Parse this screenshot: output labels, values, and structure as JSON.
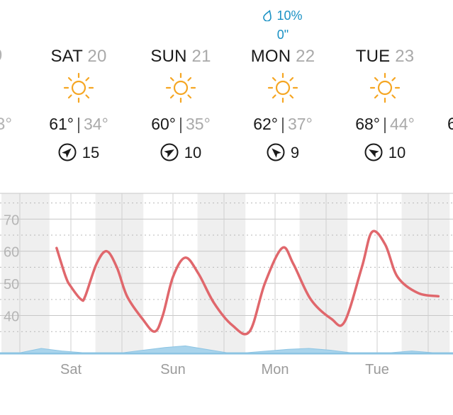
{
  "edges": {
    "left_header_glyph": "9",
    "left_temp_partial": "3°",
    "right_temp_partial": "6"
  },
  "days": [
    {
      "name": "SAT",
      "date": "20",
      "hi": "61°",
      "lo": "34°",
      "wind": "15",
      "icon": "sun-icon"
    },
    {
      "name": "SUN",
      "date": "21",
      "hi": "60°",
      "lo": "35°",
      "wind": "10",
      "icon": "sun-icon"
    },
    {
      "name": "MON",
      "date": "22",
      "hi": "62°",
      "lo": "37°",
      "wind": "9",
      "icon": "sun-icon",
      "precip_chance": "10%",
      "precip_amount": "0\""
    },
    {
      "name": "TUE",
      "date": "23",
      "hi": "68°",
      "lo": "44°",
      "wind": "10",
      "icon": "sun-icon"
    }
  ],
  "separator": "|",
  "colors": {
    "temperature_line": "#e0676c",
    "precip_area": "#a9d4ec",
    "precip_text": "#1a91c4",
    "sun": "#f5a623",
    "night_band": "#efefef"
  },
  "chart_data": {
    "type": "line",
    "title": "",
    "xlabel": "",
    "ylabel": "",
    "ylim": [
      28,
      78
    ],
    "yticks": [
      "40",
      "50",
      "60",
      "70"
    ],
    "grid": true,
    "day_labels": [
      "Sat",
      "Sun",
      "Mon",
      "Tue"
    ],
    "series": [
      {
        "values": [
          [
            -0.14,
            61
          ],
          [
            -0.05,
            52
          ],
          [
            0.0,
            49
          ],
          [
            0.1,
            45
          ],
          [
            0.14,
            46
          ],
          [
            0.25,
            56
          ],
          [
            0.35,
            60
          ],
          [
            0.45,
            55
          ],
          [
            0.55,
            46
          ],
          [
            0.7,
            39
          ],
          [
            0.82,
            35
          ],
          [
            0.9,
            40
          ],
          [
            1.0,
            52
          ],
          [
            1.12,
            58
          ],
          [
            1.25,
            53
          ],
          [
            1.4,
            44
          ],
          [
            1.58,
            37
          ],
          [
            1.75,
            35
          ],
          [
            1.9,
            50
          ],
          [
            2.07,
            61
          ],
          [
            2.18,
            56
          ],
          [
            2.35,
            45
          ],
          [
            2.55,
            39
          ],
          [
            2.68,
            38
          ],
          [
            2.85,
            55
          ],
          [
            2.95,
            66
          ],
          [
            3.08,
            62
          ],
          [
            3.2,
            52
          ],
          [
            3.4,
            47
          ],
          [
            3.6,
            46
          ]
        ]
      }
    ],
    "precip_area": [
      0,
      0,
      0.05,
      0.02,
      0,
      0,
      0,
      0.03,
      0.06,
      0.08,
      0.04,
      0,
      0,
      0.02,
      0.04,
      0.05,
      0.03,
      0,
      0,
      0,
      0.02,
      0,
      0
    ]
  }
}
